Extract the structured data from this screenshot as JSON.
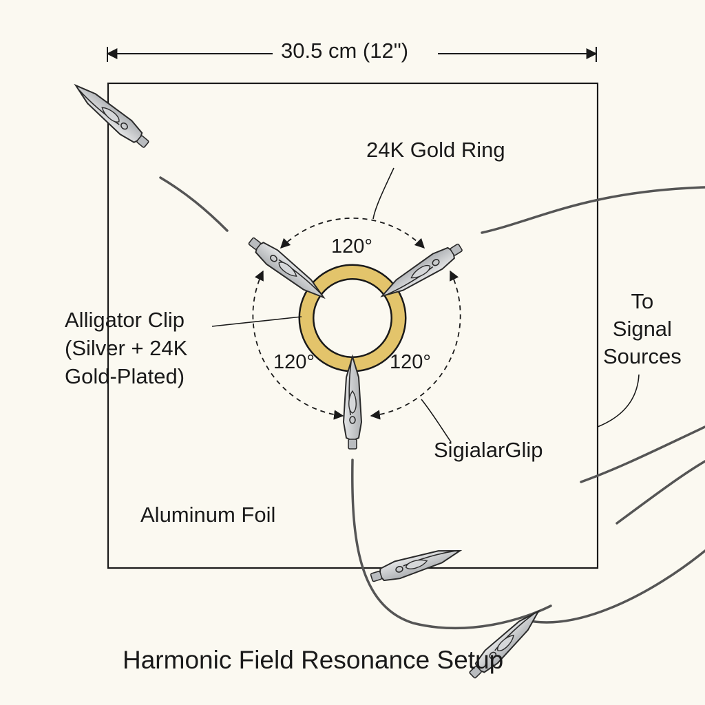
{
  "diagram": {
    "dimension_label": "30.5 cm (12\")",
    "ring_label": "24K Gold Ring",
    "angle_labels": [
      "120°",
      "120°",
      "120°"
    ],
    "clip_label_lines": [
      "Alligator Clip",
      "(Silver + 24K",
      "Gold-Plated)"
    ],
    "signal_label_lines": [
      "To",
      "Signal",
      "Sources"
    ],
    "glip_label": "SigialarGlip",
    "foil_label": "Aluminum Foil",
    "title": "Harmonic Field Resonance Setup"
  },
  "colors": {
    "background": "#fbf9f1",
    "ink": "#1a1a1a",
    "ring_gold": "#e3c46b",
    "clip_metal": "#c9cbcd",
    "wire": "#555555"
  }
}
